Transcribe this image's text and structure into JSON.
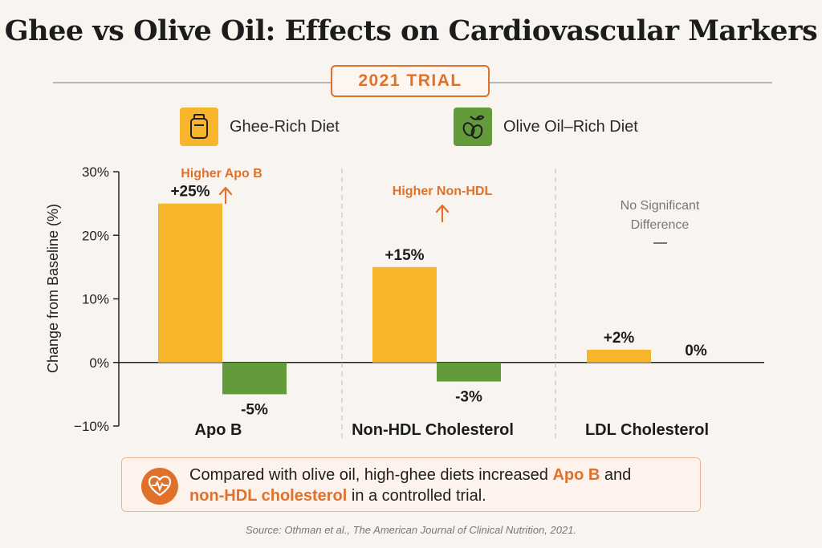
{
  "title": "Ghee vs Olive Oil: Effects on Cardiovascular Markers",
  "badge": "2021 TRIAL",
  "legend": [
    {
      "label": "Ghee-Rich Diet",
      "icon": "ghee-jar-icon",
      "color": "#f7b52c"
    },
    {
      "label": "Olive Oil–Rich Diet",
      "icon": "olive-icon",
      "color": "#639a3b"
    }
  ],
  "chart_data": {
    "type": "bar",
    "categories": [
      "Apo B",
      "Non-HDL Cholesterol",
      "LDL Cholesterol"
    ],
    "series": [
      {
        "name": "Ghee-Rich Diet",
        "color": "#f7b52c",
        "values": [
          25,
          15,
          2
        ],
        "labels": [
          "+25%",
          "+15%",
          "+2%"
        ]
      },
      {
        "name": "Olive Oil–Rich Diet",
        "color": "#639a3b",
        "values": [
          -5,
          -3,
          0
        ],
        "labels": [
          "-5%",
          "-3%",
          "0%"
        ]
      }
    ],
    "ylabel": "Change from Baseline (%)",
    "ylim": [
      -10,
      30
    ],
    "yticks": [
      30,
      20,
      10,
      0,
      -10
    ],
    "ytick_labels": [
      "30%",
      "20%",
      "10%",
      "0%",
      "−10%"
    ],
    "grid": false,
    "annotations": [
      {
        "category": 0,
        "text": "Higher Apo B",
        "arrow": "up",
        "color": "#e0712b"
      },
      {
        "category": 1,
        "text": "Higher Non-HDL",
        "arrow": "up",
        "color": "#e0712b"
      },
      {
        "category": 2,
        "text": "No Significant Difference",
        "lines": [
          "No Significant",
          "Difference"
        ],
        "arrow": "dash",
        "color": "#777777"
      }
    ]
  },
  "callout": {
    "icon": "heart-pulse-icon",
    "text_1": "Compared with olive oil, high-ghee diets increased ",
    "highlight_1": "Apo B",
    "text_2": " and",
    "highlight_2": "non-HDL cholesterol",
    "text_3": " in a controlled trial."
  },
  "source": "Source: Othman et al., The American Journal of Clinical Nutrition, 2021.",
  "colors": {
    "accent": "#e0712b",
    "ghee": "#f7b52c",
    "olive": "#639a3b"
  }
}
